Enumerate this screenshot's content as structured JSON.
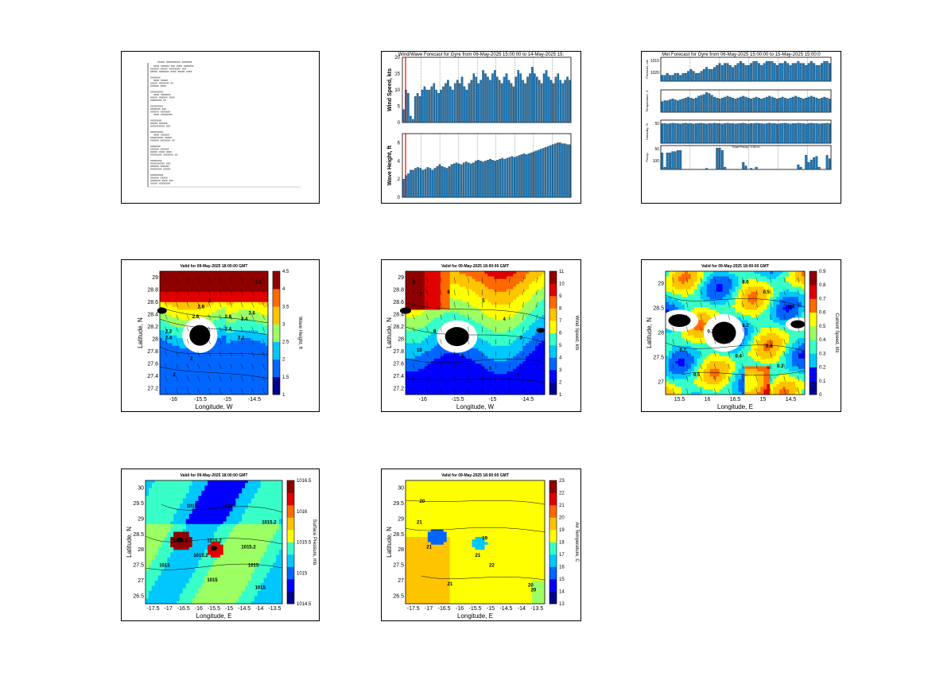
{
  "colors": {
    "bar": "#1f77b4",
    "red_line": "#ff0000",
    "jet": [
      "#00008f",
      "#0000ff",
      "#0066ff",
      "#00c8ff",
      "#38ffc7",
      "#9cff63",
      "#ffff00",
      "#ffc400",
      "#ff6a00",
      "#e00000",
      "#8f0000"
    ]
  },
  "p1": {
    "heading_glyphs": "XXXXX    XXXXXXXXXX    XXXXXXX",
    "lines": [
      "XXXX XXXXXX XXX XXXX XXXXXXX",
      "XXXXXX XXXXX XXXXXXXX XXX",
      "XXXXX XXXXXXX XXXX XXXXX XXXX",
      "",
      "XXXXXXX",
      "XXXX XXXXX",
      "XXXXX XXXXXXX XX",
      "XXXXXX XXXX",
      "",
      "XXXXXXXXX",
      "XXXX XXXXXXX",
      "XXXXX XXXXXX XXXX",
      "XXXXXXXX XX",
      "",
      "XXXXXXXXX",
      "XXXXXXX XXX",
      "XXXXXX XXXXXXX",
      "XXXX XXXXXXXX",
      "",
      "XXXXXXXX",
      "XXXXX XXXXXX",
      "XXXXXXXXXX XXX",
      "",
      "XXXXXXXXX",
      "XXXX XXXXXX",
      "XXXXXXXXX XXXXX",
      "XXXXXX XXXXXXX XX",
      "",
      "XXXXXXX",
      "XXXXXX XXXXXX",
      "XXXXX XXXX XXXX",
      "XXXXXXXX XXXXXXX XX",
      "",
      "XXXXXXXX",
      "XXXXXXXXXX XXX",
      "XXXXXX XXXXXX",
      "XXXXXXXX XXXXX",
      "",
      "XXXXXXXXX",
      "XXXXXX XXXXX",
      "XXXXXXX XXXX XXX",
      "XXXXX XXXXXXXX"
    ]
  },
  "chart_data": [
    {
      "type": "bar",
      "title": "Wind/Wave Forecast for Gyre from 06-May-2025 15:00:00 to 14-May-2025 15:",
      "series": [
        {
          "ylabel": "Wind Speed, kts",
          "ylim": [
            0,
            20
          ],
          "yticks": [
            0,
            5,
            10,
            15,
            20
          ],
          "values": [
            4,
            10,
            9,
            2,
            1,
            8,
            9,
            8,
            10,
            11,
            10,
            10,
            11,
            12,
            10,
            9,
            10,
            11,
            12,
            13,
            11,
            10,
            12,
            13,
            12,
            14,
            11,
            10,
            12,
            13,
            15,
            14,
            12,
            13,
            16,
            15,
            14,
            13,
            15,
            16,
            14,
            13,
            12,
            14,
            15,
            13,
            12,
            11,
            14,
            16,
            15,
            13,
            12,
            14,
            15,
            17,
            15,
            14,
            13,
            12,
            15,
            16,
            14,
            13,
            12,
            14,
            15,
            13,
            12,
            13,
            14,
            13
          ]
        },
        {
          "ylabel": "Wave Height, ft",
          "ylim": [
            0,
            7
          ],
          "yticks": [
            0,
            2,
            4,
            6
          ],
          "values": [
            2,
            2.4,
            2.6,
            3.0,
            3.0,
            3.2,
            3.3,
            3.2,
            3.0,
            3.1,
            3.3,
            3.2,
            3.0,
            3.2,
            3.4,
            3.6,
            3.4,
            3.3,
            3.2,
            3.4,
            3.6,
            3.7,
            3.8,
            3.7,
            3.6,
            3.8,
            3.9,
            3.8,
            3.7,
            3.8,
            4.0,
            4.1,
            4.0,
            3.9,
            4.0,
            4.1,
            4.2,
            4.1,
            4.0,
            4.1,
            4.2,
            4.3,
            4.2,
            4.3,
            4.4,
            4.5,
            4.4,
            4.5,
            4.6,
            4.7,
            4.8,
            4.7,
            4.8,
            4.9,
            5.0,
            5.1,
            5.2,
            5.3,
            5.4,
            5.5,
            5.6,
            5.7,
            5.8,
            5.9,
            6.0,
            6.0,
            5.9,
            5.9,
            5.8,
            5.8
          ]
        }
      ],
      "grid": false
    },
    {
      "type": "bar",
      "title": "Met Forecast for Gyre from 06-May-2025 15:00:00 to 15-May-2025 15:00:0",
      "series": [
        {
          "ylabel": "Pressure, mb",
          "yticks": [
            "1015",
            "1020"
          ],
          "ylim": [
            1010,
            1022
          ],
          "values": [
            1013,
            1013,
            1014,
            1013,
            1013,
            1014,
            1014,
            1013,
            1014,
            1014,
            1015,
            1016,
            1015,
            1014,
            1014,
            1015,
            1016,
            1017,
            1016,
            1016,
            1017,
            1018,
            1019,
            1018,
            1019,
            1019,
            1018,
            1017,
            1018,
            1019,
            1020,
            1019,
            1018,
            1018,
            1019,
            1020,
            1020,
            1019,
            1018,
            1019,
            1020,
            1020,
            1020,
            1019,
            1018,
            1019,
            1019,
            1020,
            1019,
            1018,
            1019,
            1019,
            1020,
            1019,
            1019,
            1018,
            1019,
            1020,
            1019,
            1018,
            1018,
            1019,
            1020,
            1020,
            1019
          ]
        },
        {
          "ylabel": "Temperature, C",
          "ylim": [
            0,
            25
          ],
          "values": [
            12,
            13,
            13,
            14,
            15,
            14,
            13,
            14,
            15,
            16,
            17,
            16,
            15,
            16,
            18,
            19,
            20,
            22,
            21,
            19,
            17,
            16,
            15,
            16,
            17,
            18,
            17,
            16,
            15,
            16,
            17,
            18,
            17,
            16,
            15,
            16,
            17,
            16,
            15,
            16,
            17,
            18,
            17,
            16,
            15,
            16,
            17,
            16,
            15,
            16,
            17,
            18,
            17,
            16,
            15,
            16,
            17,
            18,
            17,
            16,
            15,
            16,
            17,
            16,
            15
          ]
        },
        {
          "ylabel": "Humidity, %",
          "ylim": [
            0,
            100
          ],
          "yticks": [
            "50"
          ],
          "values": [
            85,
            86,
            84,
            85,
            87,
            86,
            85,
            84,
            86,
            87,
            85,
            86,
            84,
            85,
            86,
            87,
            85,
            84,
            86,
            85,
            87,
            86,
            85,
            84,
            86,
            87,
            85,
            86,
            84,
            85,
            86,
            87,
            85,
            84,
            86,
            85,
            87,
            86,
            85,
            84,
            86,
            87,
            85,
            86,
            84,
            85,
            86,
            87,
            85,
            84,
            86,
            85,
            87,
            86,
            85,
            84,
            86,
            87,
            85,
            86,
            84,
            85,
            86,
            87,
            85
          ]
        },
        {
          "ylabel": "Precip",
          "ylim": [
            0,
            100
          ],
          "yticks": [
            "50",
            "100"
          ],
          "annotation": "Total Precip: 0.00 in",
          "values": [
            70,
            10,
            70,
            70,
            75,
            75,
            80,
            80,
            0,
            0,
            0,
            0,
            0,
            0,
            0,
            0,
            0,
            5,
            0,
            0,
            0,
            90,
            90,
            80,
            10,
            0,
            0,
            0,
            0,
            0,
            0,
            30,
            15,
            0,
            5,
            0,
            10,
            0,
            0,
            0,
            0,
            0,
            0,
            0,
            0,
            0,
            0,
            0,
            0,
            0,
            0,
            0,
            20,
            10,
            0,
            60,
            30,
            40,
            50,
            55,
            10,
            0,
            0,
            60,
            45
          ]
        }
      ]
    },
    {
      "type": "heatmap",
      "title": "Valid for 09-May-2025 18:00:00 GMT",
      "xlabel": "Longitude, W",
      "ylabel": "Latitude, N",
      "cbar_label": "Wave Height, ft",
      "xticks": [
        "-16",
        "-15.5",
        "-15",
        "-14.5"
      ],
      "yticks": [
        "27.2",
        "27.4",
        "27.6",
        "27.8",
        "28",
        "28.2",
        "28.4",
        "28.6",
        "28.8",
        "29"
      ],
      "cticks": [
        "1",
        "1.5",
        "2",
        "2.5",
        "3",
        "3.5",
        "4",
        "4.5"
      ],
      "crange": [
        1,
        4.5
      ],
      "contour_labels": [
        "3.8",
        "3.6",
        "3",
        "2.8",
        "2.6",
        "2.4",
        "2.4",
        "2.2",
        "2.2",
        "2",
        "2",
        "3.4",
        "2.8"
      ]
    },
    {
      "type": "heatmap",
      "title": "Valid for 09-May-2025 18:00:00 GMT",
      "xlabel": "Longitude, W",
      "ylabel": "Latitude, N",
      "cbar_label": "Wind Speed, kts",
      "xticks": [
        "-16",
        "-15.5",
        "-15",
        "-14.5"
      ],
      "yticks": [
        "27.2",
        "27.4",
        "27.6",
        "27.8",
        "28",
        "28.2",
        "28.4",
        "28.6",
        "28.8",
        "29"
      ],
      "cticks": [
        "1",
        "2",
        "3",
        "4",
        "5",
        "6",
        "7",
        "8",
        "9",
        "10",
        "11"
      ],
      "crange": [
        1,
        11
      ],
      "contour_labels": [
        "8",
        "7",
        "6",
        "5",
        "4",
        "3",
        "9",
        "10",
        "6",
        "5",
        "4"
      ]
    },
    {
      "type": "heatmap",
      "title": "Valid for 09-May-2025 18:00:00 GMT",
      "xlabel": "Longitude, E",
      "ylabel": "Latitude, N",
      "cbar_label": "Current Speed, kts",
      "xticks": [
        "15.5",
        "16",
        "16.5",
        "15",
        "14.5"
      ],
      "yticks": [
        "27",
        "27.5",
        "28",
        "28.5",
        "29"
      ],
      "cticks": [
        "0",
        "0.1",
        "0.2",
        "0.3",
        "0.4",
        "0.5",
        "0.6",
        "0.7",
        "0.8",
        "0.9"
      ],
      "crange": [
        0,
        0.9
      ],
      "contour_labels": [
        "0.6",
        "0.5",
        "0.3",
        "0.2",
        "0.4",
        "0.4",
        "0.3",
        "0.5",
        "0.6",
        "0.7"
      ]
    },
    {
      "type": "heatmap",
      "title": "Valid for 09-May-2025 18:00:00 GMT",
      "xlabel": "Longitude, E",
      "ylabel": "Latitude, N",
      "cbar_label": "Surface Pressure, mb",
      "xticks": [
        "-17.5",
        "-17",
        "-16.5",
        "-16",
        "-15.5",
        "-15",
        "-14.5",
        "-14",
        "-13.5"
      ],
      "yticks": [
        "26.5",
        "27",
        "27.5",
        "28",
        "28.5",
        "29",
        "29.5",
        "30"
      ],
      "cticks": [
        "1014.5",
        "1015",
        "1015.5",
        "1016",
        "1016.5"
      ],
      "crange": [
        1014.5,
        1016.5
      ],
      "contour_labels": [
        "1015",
        "1015",
        "1015.2",
        "1015.2",
        "1015",
        "1015.2",
        "1015.2",
        "1015.2",
        "1015",
        "1015",
        "1015"
      ]
    },
    {
      "type": "heatmap",
      "title": "Valid for 09-May-2025 18:00:00 GMT",
      "xlabel": "Longitude, E",
      "ylabel": "Latitude, N",
      "cbar_label": "Air Temperature, C",
      "xticks": [
        "-17.5",
        "-17",
        "-16.5",
        "-16",
        "-15.5",
        "-15",
        "-14.5",
        "-14",
        "-13.5"
      ],
      "yticks": [
        "26.5",
        "27",
        "27.5",
        "28",
        "28.5",
        "29",
        "29.5",
        "30"
      ],
      "cticks": [
        "13",
        "14",
        "15",
        "16",
        "17",
        "18",
        "19",
        "20",
        "21",
        "22",
        "23"
      ],
      "crange": [
        13,
        23
      ],
      "contour_labels": [
        "20",
        "21",
        "21",
        "20",
        "19",
        "21",
        "22",
        "20",
        "21"
      ]
    }
  ]
}
